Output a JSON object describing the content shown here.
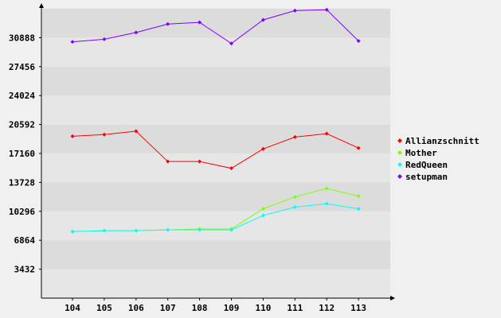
{
  "chart_data": {
    "type": "line",
    "title": "",
    "xlabel": "",
    "ylabel": "",
    "categories": [
      "104",
      "105",
      "106",
      "107",
      "108",
      "109",
      "110",
      "111",
      "112",
      "113"
    ],
    "y_ticks": [
      "3432",
      "6864",
      "10296",
      "13728",
      "17160",
      "20592",
      "24024",
      "27456",
      "30888"
    ],
    "ylim": [
      0,
      34320
    ],
    "grid": "horizontal bands",
    "legend_position": "right",
    "series": [
      {
        "name": "Allianzschnitt",
        "color": "#ff0000",
        "values": [
          19200,
          19400,
          19800,
          16200,
          16200,
          15400,
          17700,
          19100,
          19500,
          17800
        ]
      },
      {
        "name": "Mother",
        "color": "#80ff00",
        "values": [
          7900,
          8000,
          8000,
          8100,
          8200,
          8200,
          10600,
          12000,
          13000,
          12100
        ]
      },
      {
        "name": "RedQueen",
        "color": "#00ffff",
        "values": [
          7900,
          8000,
          8000,
          8100,
          8100,
          8100,
          9800,
          10800,
          11200,
          10600
        ]
      },
      {
        "name": "setupman",
        "color": "#8000ff",
        "values": [
          30400,
          30700,
          31500,
          32500,
          32700,
          30200,
          33000,
          34100,
          34200,
          30500
        ]
      }
    ]
  }
}
